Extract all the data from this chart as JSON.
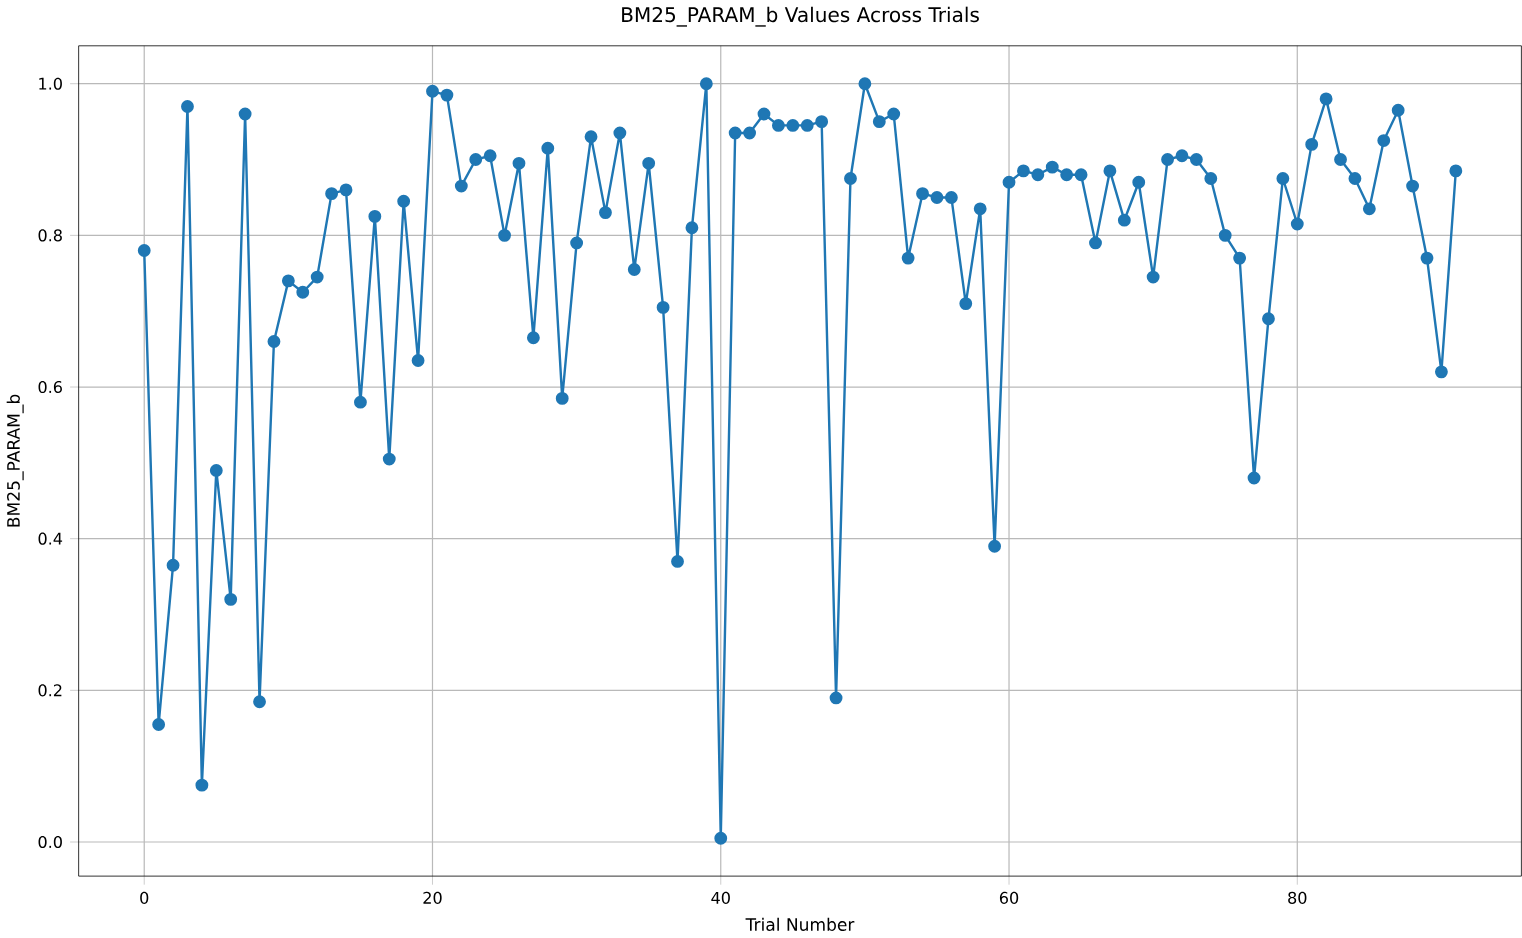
{
  "chart_data": {
    "type": "line",
    "title": "BM25_PARAM_b Values Across Trials",
    "xlabel": "Trial Number",
    "ylabel": "BM25_PARAM_b",
    "x": [
      0,
      1,
      2,
      3,
      4,
      5,
      6,
      7,
      8,
      9,
      10,
      11,
      12,
      13,
      14,
      15,
      16,
      17,
      18,
      19,
      20,
      21,
      22,
      23,
      24,
      25,
      26,
      27,
      28,
      29,
      30,
      31,
      32,
      33,
      34,
      35,
      36,
      37,
      38,
      39,
      40,
      41,
      42,
      43,
      44,
      45,
      46,
      47,
      48,
      49,
      50,
      51,
      52,
      53,
      54,
      55,
      56,
      57,
      58,
      59,
      60,
      61,
      62,
      63,
      64,
      65,
      66,
      67,
      68,
      69,
      70,
      71,
      72,
      73,
      74,
      75,
      76,
      77,
      78,
      79,
      80,
      81,
      82,
      83,
      84,
      85,
      86,
      87,
      88,
      89,
      90,
      91
    ],
    "series": [
      {
        "color": "#1f77b4",
        "values": [
          0.78,
          0.155,
          0.365,
          0.97,
          0.075,
          0.49,
          0.32,
          0.96,
          0.185,
          0.66,
          0.74,
          0.725,
          0.745,
          0.855,
          0.86,
          0.58,
          0.825,
          0.505,
          0.845,
          0.635,
          0.99,
          0.985,
          0.865,
          0.9,
          0.905,
          0.8,
          0.895,
          0.665,
          0.915,
          0.585,
          0.79,
          0.93,
          0.83,
          0.935,
          0.755,
          0.895,
          0.705,
          0.37,
          0.81,
          1.0,
          0.005,
          0.935,
          0.935,
          0.96,
          0.945,
          0.945,
          0.945,
          0.95,
          0.19,
          0.875,
          1.0,
          0.95,
          0.96,
          0.77,
          0.855,
          0.85,
          0.85,
          0.71,
          0.835,
          0.39,
          0.87,
          0.885,
          0.88,
          0.89,
          0.88,
          0.88,
          0.79,
          0.885,
          0.82,
          0.87,
          0.745,
          0.9,
          0.905,
          0.9,
          0.875,
          0.8,
          0.77,
          0.48,
          0.69,
          0.875,
          0.815,
          0.92,
          0.98,
          0.9,
          0.875,
          0.835,
          0.925,
          0.965,
          0.865,
          0.77,
          0.62,
          0.885
        ]
      }
    ],
    "xlim": [
      -4.55,
      95.55
    ],
    "ylim": [
      -0.045,
      1.05
    ],
    "xticks": [
      0,
      20,
      40,
      60,
      80
    ],
    "yticks": [
      {
        "value": 0,
        "label": "0.0"
      },
      {
        "value": 0.2,
        "label": "0.2"
      },
      {
        "value": 0.4,
        "label": "0.4"
      },
      {
        "value": 0.6,
        "label": "0.6"
      },
      {
        "value": 0.8,
        "label": "0.8"
      },
      {
        "value": 1.0,
        "label": "1.0"
      }
    ],
    "grid": true,
    "marker": "circle",
    "line_style": "solid"
  }
}
